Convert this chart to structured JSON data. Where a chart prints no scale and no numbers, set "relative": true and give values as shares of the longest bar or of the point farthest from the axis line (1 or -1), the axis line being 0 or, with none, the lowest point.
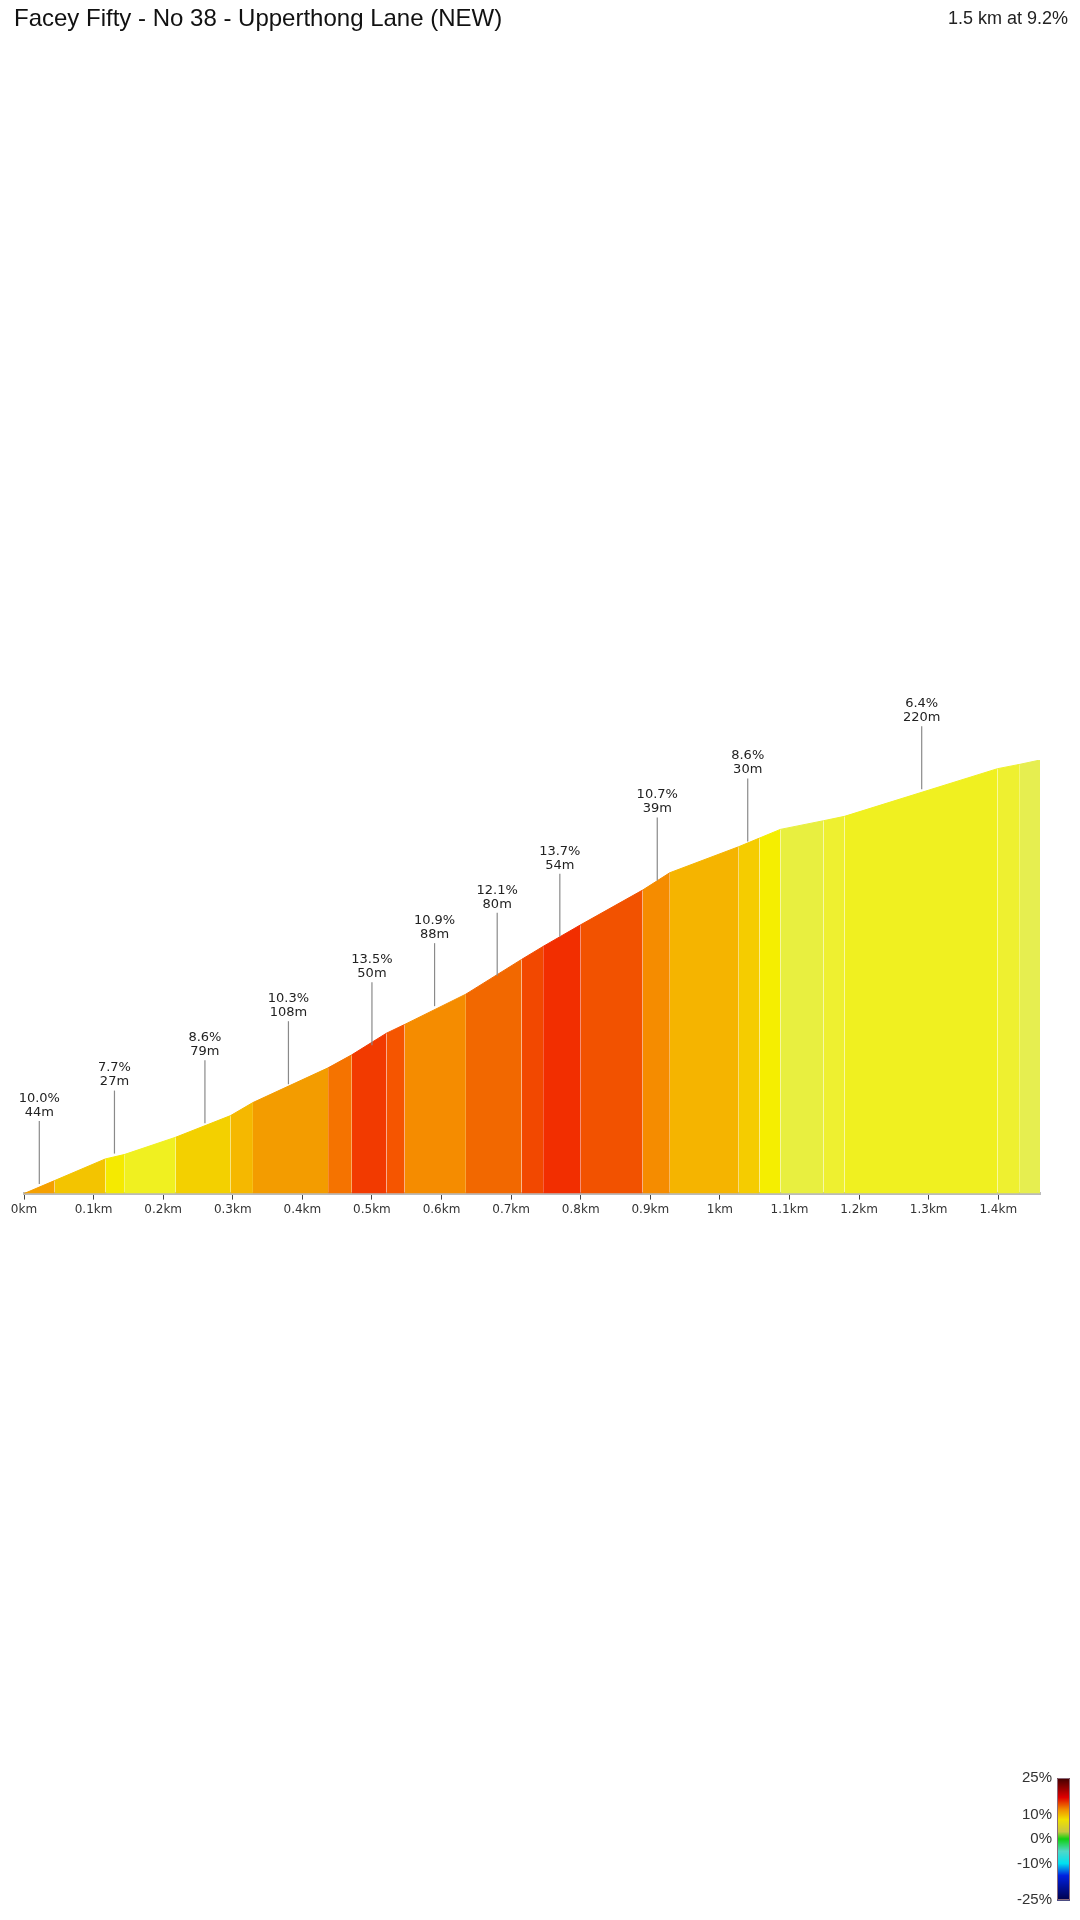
{
  "chart_data": {
    "type": "area",
    "title": "Facey Fifty - No 38 - Upperthong Lane (NEW)",
    "subtitle": "1.5 km at 9.2%",
    "relative": true,
    "tick_labels": "x",
    "xlim": [
      0,
      1.46
    ],
    "xticks": [
      {
        "value": 0,
        "label": "0km"
      },
      {
        "value": 0.1,
        "label": "0.1km"
      },
      {
        "value": 0.2,
        "label": "0.2km"
      },
      {
        "value": 0.3,
        "label": "0.3km"
      },
      {
        "value": 0.4,
        "label": "0.4km"
      },
      {
        "value": 0.5,
        "label": "0.5km"
      },
      {
        "value": 0.6,
        "label": "0.6km"
      },
      {
        "value": 0.7,
        "label": "0.7km"
      },
      {
        "value": 0.8,
        "label": "0.8km"
      },
      {
        "value": 0.9,
        "label": "0.9km"
      },
      {
        "value": 1,
        "label": "1km"
      },
      {
        "value": 1.1,
        "label": "1.1km"
      },
      {
        "value": 1.2,
        "label": "1.2km"
      },
      {
        "value": 1.3,
        "label": "1.3km"
      },
      {
        "value": 1.4,
        "label": "1.4km"
      }
    ],
    "series": [
      {
        "color": "#f5a000",
        "x": [
          0,
          0.044
        ],
        "values": [
          0,
          0.03
        ]
      },
      {
        "color": "#f3c400",
        "x": [
          0.044,
          0.117
        ],
        "values": [
          0.03,
          0.08
        ]
      },
      {
        "color": "#f5ea00",
        "x": [
          0.117,
          0.144
        ],
        "values": [
          0.08,
          0.09
        ]
      },
      {
        "color": "#f0f020",
        "x": [
          0.144,
          0.218
        ],
        "values": [
          0.09,
          0.13
        ]
      },
      {
        "color": "#f3d000",
        "x": [
          0.218,
          0.297
        ],
        "values": [
          0.13,
          0.18
        ]
      },
      {
        "color": "#f5b800",
        "x": [
          0.297,
          0.329
        ],
        "values": [
          0.18,
          0.21
        ]
      },
      {
        "color": "#f39c00",
        "x": [
          0.329,
          0.437
        ],
        "values": [
          0.21,
          0.29
        ]
      },
      {
        "color": "#f57300",
        "x": [
          0.437,
          0.471
        ],
        "values": [
          0.29,
          0.32
        ]
      },
      {
        "color": "#f23a00",
        "x": [
          0.471,
          0.521
        ],
        "values": [
          0.32,
          0.37
        ]
      },
      {
        "color": "#f55500",
        "x": [
          0.521,
          0.547
        ],
        "values": [
          0.37,
          0.39
        ]
      },
      {
        "color": "#f58c00",
        "x": [
          0.547,
          0.635
        ],
        "values": [
          0.39,
          0.46
        ]
      },
      {
        "color": "#f26800",
        "x": [
          0.635,
          0.715
        ],
        "values": [
          0.46,
          0.54
        ]
      },
      {
        "color": "#f24800",
        "x": [
          0.715,
          0.746
        ],
        "values": [
          0.54,
          0.57
        ]
      },
      {
        "color": "#f22e00",
        "x": [
          0.746,
          0.8
        ],
        "values": [
          0.57,
          0.62
        ]
      },
      {
        "color": "#f25200",
        "x": [
          0.8,
          0.889
        ],
        "values": [
          0.62,
          0.7
        ]
      },
      {
        "color": "#f58c00",
        "x": [
          0.889,
          0.928
        ],
        "values": [
          0.7,
          0.74
        ]
      },
      {
        "color": "#f5b400",
        "x": [
          0.928,
          1.027
        ],
        "values": [
          0.74,
          0.8
        ]
      },
      {
        "color": "#f5cc00",
        "x": [
          1.027,
          1.057
        ],
        "values": [
          0.8,
          0.82
        ]
      },
      {
        "color": "#f5ee00",
        "x": [
          1.057,
          1.087
        ],
        "values": [
          0.82,
          0.84
        ]
      },
      {
        "color": "#e8ef40",
        "x": [
          1.087,
          1.149
        ],
        "values": [
          0.84,
          0.86
        ]
      },
      {
        "color": "#eef030",
        "x": [
          1.149,
          1.179
        ],
        "values": [
          0.86,
          0.87
        ]
      },
      {
        "color": "#f0f020",
        "x": [
          1.179,
          1.399
        ],
        "values": [
          0.87,
          0.98
        ]
      },
      {
        "color": "#eef030",
        "x": [
          1.399,
          1.431
        ],
        "values": [
          0.98,
          0.99
        ]
      },
      {
        "color": "#e6ee50",
        "x": [
          1.431,
          1.46
        ],
        "values": [
          0.99,
          1
        ]
      }
    ],
    "annotations": [
      {
        "text": "10.0%\n44m",
        "x": 0.022,
        "y": 0.02
      },
      {
        "text": "7.7%\n27m",
        "x": 0.13,
        "y": 0.09
      },
      {
        "text": "8.6%\n79m",
        "x": 0.26,
        "y": 0.16
      },
      {
        "text": "10.3%\n108m",
        "x": 0.38,
        "y": 0.25
      },
      {
        "text": "13.5%\n50m",
        "x": 0.5,
        "y": 0.34
      },
      {
        "text": "10.9%\n88m",
        "x": 0.59,
        "y": 0.43
      },
      {
        "text": "12.1%\n80m",
        "x": 0.68,
        "y": 0.5
      },
      {
        "text": "13.7%\n54m",
        "x": 0.77,
        "y": 0.59
      },
      {
        "text": "10.7%\n39m",
        "x": 0.91,
        "y": 0.72
      },
      {
        "text": "8.6%\n30m",
        "x": 1.04,
        "y": 0.81
      },
      {
        "text": "6.4%\n220m",
        "x": 1.29,
        "y": 0.93
      }
    ],
    "clim": [
      -25,
      25
    ],
    "cticks": [
      {
        "value": 25,
        "label": "25%"
      },
      {
        "value": 10,
        "label": "10%"
      },
      {
        "value": 0,
        "label": "0%"
      },
      {
        "value": -10,
        "label": "-10%"
      },
      {
        "value": -25,
        "label": "-25%"
      }
    ]
  }
}
